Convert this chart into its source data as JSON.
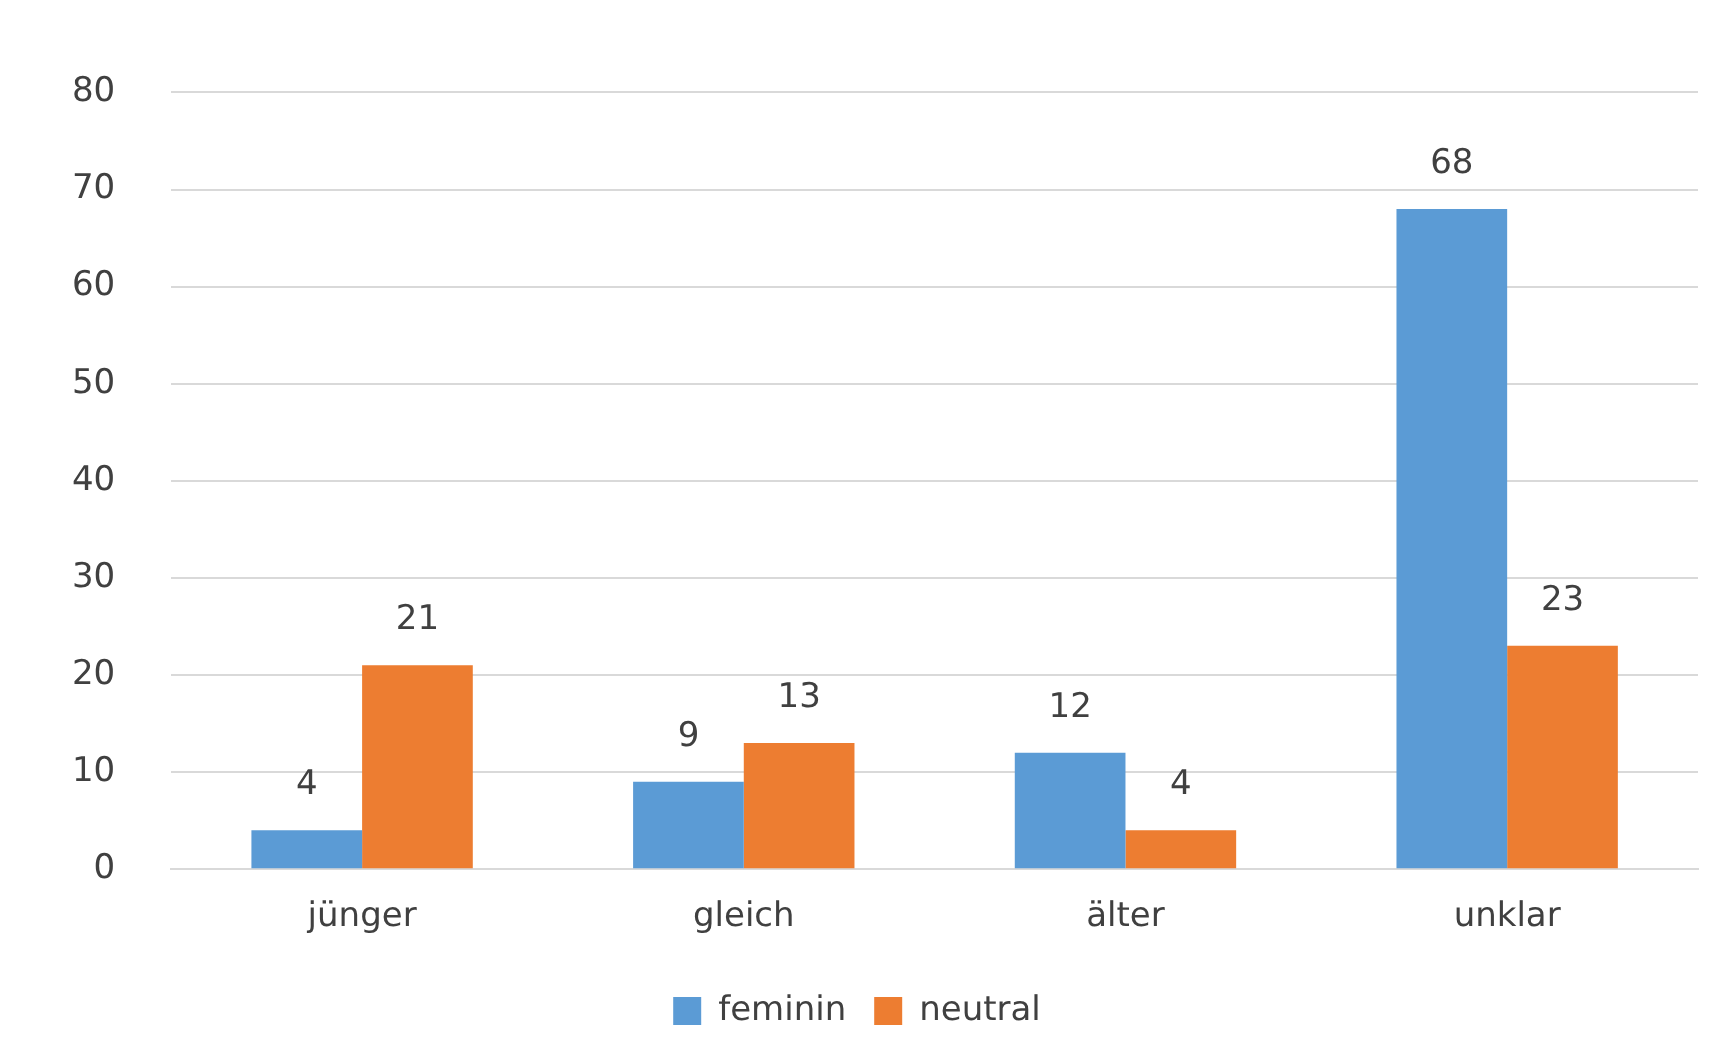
{
  "chart_data": {
    "type": "bar",
    "categories": [
      "jünger",
      "gleich",
      "älter",
      "unklar"
    ],
    "series": [
      {
        "name": "feminin",
        "color": "#5b9bd5",
        "values": [
          4,
          9,
          12,
          68
        ]
      },
      {
        "name": "neutral",
        "color": "#ed7d31",
        "values": [
          21,
          13,
          4,
          23
        ]
      }
    ],
    "ylim": [
      0,
      80
    ],
    "yticks": [
      0,
      10,
      20,
      30,
      40,
      50,
      60,
      70,
      80
    ],
    "grid": "y",
    "legend": "bottom",
    "data_labels": true
  }
}
